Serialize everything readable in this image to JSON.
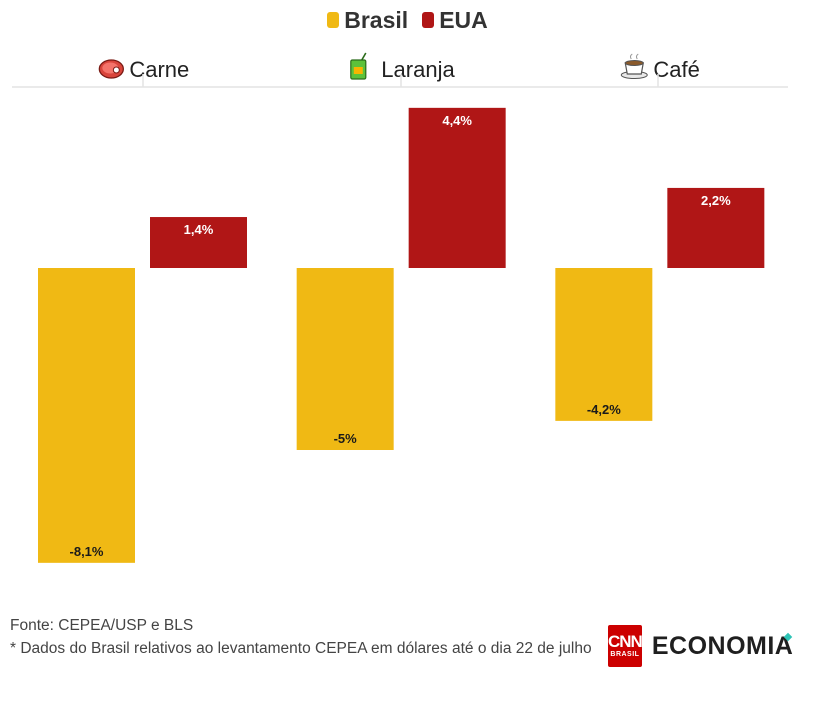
{
  "legend": [
    {
      "name": "Brasil",
      "color": "#f0b914"
    },
    {
      "name": "EUA",
      "color": "#b01616"
    }
  ],
  "chart_data": {
    "type": "bar",
    "categories": [
      "Carne",
      "Laranja",
      "Café"
    ],
    "category_icons": [
      "meat-icon",
      "juice-box-icon",
      "coffee-icon"
    ],
    "series": [
      {
        "name": "Brasil",
        "color": "#f0b914",
        "values": [
          -8.1,
          -5,
          -4.2
        ],
        "labels": [
          "-8,1%",
          "-5%",
          "-4,2%"
        ]
      },
      {
        "name": "EUA",
        "color": "#b01616",
        "values": [
          1.4,
          4.4,
          2.2
        ],
        "labels": [
          "1,4%",
          "4,4%",
          "2,2%"
        ]
      }
    ],
    "title": "",
    "xlabel": "",
    "ylabel": "",
    "ylim": [
      -8.1,
      4.4
    ],
    "legend_position": "top-center",
    "grid": false
  },
  "footer": {
    "source": "Fonte: CEPEA/USP e BLS",
    "note": "* Dados do Brasil relativos ao levantamento CEPEA em dólares até o dia 22 de julho"
  },
  "logo": {
    "cnn": "CNN",
    "cnn_sub": "BRASIL",
    "section": "ECONOMIA"
  }
}
